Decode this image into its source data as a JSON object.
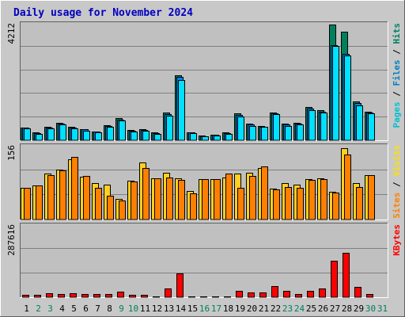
{
  "chart_data": {
    "type": "bar",
    "title": "Daily usage for November 2024",
    "days": [
      "1",
      "2",
      "3",
      "4",
      "5",
      "6",
      "7",
      "8",
      "9",
      "10",
      "11",
      "12",
      "13",
      "14",
      "15",
      "16",
      "17",
      "18",
      "19",
      "20",
      "21",
      "22",
      "23",
      "24",
      "25",
      "26",
      "27",
      "28",
      "29",
      "30",
      "31"
    ],
    "weekend_days": [
      "2",
      "3",
      "9",
      "10",
      "16",
      "17",
      "23",
      "24",
      "30",
      "31"
    ],
    "panels": [
      {
        "name": "hits-files-pages",
        "ymax": 4212,
        "ymax_label": "4212",
        "side_label": [
          "Pages",
          " / ",
          "Files",
          " / ",
          "Hits"
        ],
        "side_colors": [
          "#00c0d0",
          "#000000",
          "#0080c0",
          "#000000",
          "#008060"
        ],
        "series": [
          {
            "name": "Hits",
            "color": "#00805c",
            "values": [
              460,
              280,
              480,
              610,
              480,
              400,
              310,
              540,
              790,
              360,
              400,
              280,
              980,
              2310,
              280,
              160,
              200,
              280,
              960,
              600,
              520,
              990,
              590,
              620,
              1190,
              1070,
              4120,
              3870,
              1390,
              1030
            ]
          },
          {
            "name": "Files",
            "color": "#0080ff",
            "values": [
              440,
              260,
              450,
              580,
              460,
              390,
              300,
              500,
              740,
              340,
              380,
              260,
              920,
              2250,
              270,
              150,
              190,
              260,
              900,
              560,
              490,
              960,
              560,
              600,
              1140,
              1030,
              3400,
              3080,
              1330,
              990
            ]
          },
          {
            "name": "Pages",
            "color": "#00e0ff",
            "values": [
              410,
              230,
              420,
              560,
              420,
              350,
              270,
              470,
              700,
              300,
              340,
              240,
              880,
              2150,
              250,
              130,
              170,
              220,
              840,
              500,
              470,
              930,
              520,
              570,
              1080,
              1000,
              3350,
              3020,
              1250,
              950
            ]
          }
        ]
      },
      {
        "name": "visits-sites",
        "ymax": 156,
        "ymax_label": "156",
        "side_label": [
          "Sites",
          " / ",
          "Visits"
        ],
        "side_colors": [
          "#ff8000",
          "#000000",
          "#ffe000"
        ],
        "series": [
          {
            "name": "Visits",
            "color": "#ffd020",
            "values": [
              66,
              71,
              96,
              104,
              124,
              88,
              76,
              73,
              43,
              80,
              118,
              86,
              97,
              86,
              59,
              84,
              84,
              87,
              96,
              97,
              106,
              64,
              75,
              72,
              84,
              85,
              57,
              148,
              76,
              92
            ]
          },
          {
            "name": "Sites",
            "color": "#ff8000",
            "values": [
              65,
              70,
              92,
              102,
              130,
              90,
              66,
              49,
              40,
              78,
              106,
              86,
              87,
              82,
              55,
              84,
              84,
              95,
              66,
              90,
              110,
              62,
              67,
              66,
              82,
              84,
              56,
              135,
              68,
              92
            ]
          }
        ]
      },
      {
        "name": "kbytes",
        "ymax": 287616,
        "ymax_label": "287616",
        "side_label": [
          "KBytes"
        ],
        "side_colors": [
          "#ff0000"
        ],
        "series": [
          {
            "name": "KBytes",
            "color": "#ff0000",
            "values": [
              9600,
              9200,
              15800,
              12200,
              15400,
              13400,
              12800,
              13400,
              21600,
              7800,
              7800,
              3200,
              34400,
              92000,
              4200,
              4200,
              3800,
              2700,
              24800,
              17400,
              19800,
              44200,
              23600,
              12400,
              25600,
              34400,
              143000,
              172000,
              41400,
              11200
            ]
          }
        ]
      }
    ]
  }
}
